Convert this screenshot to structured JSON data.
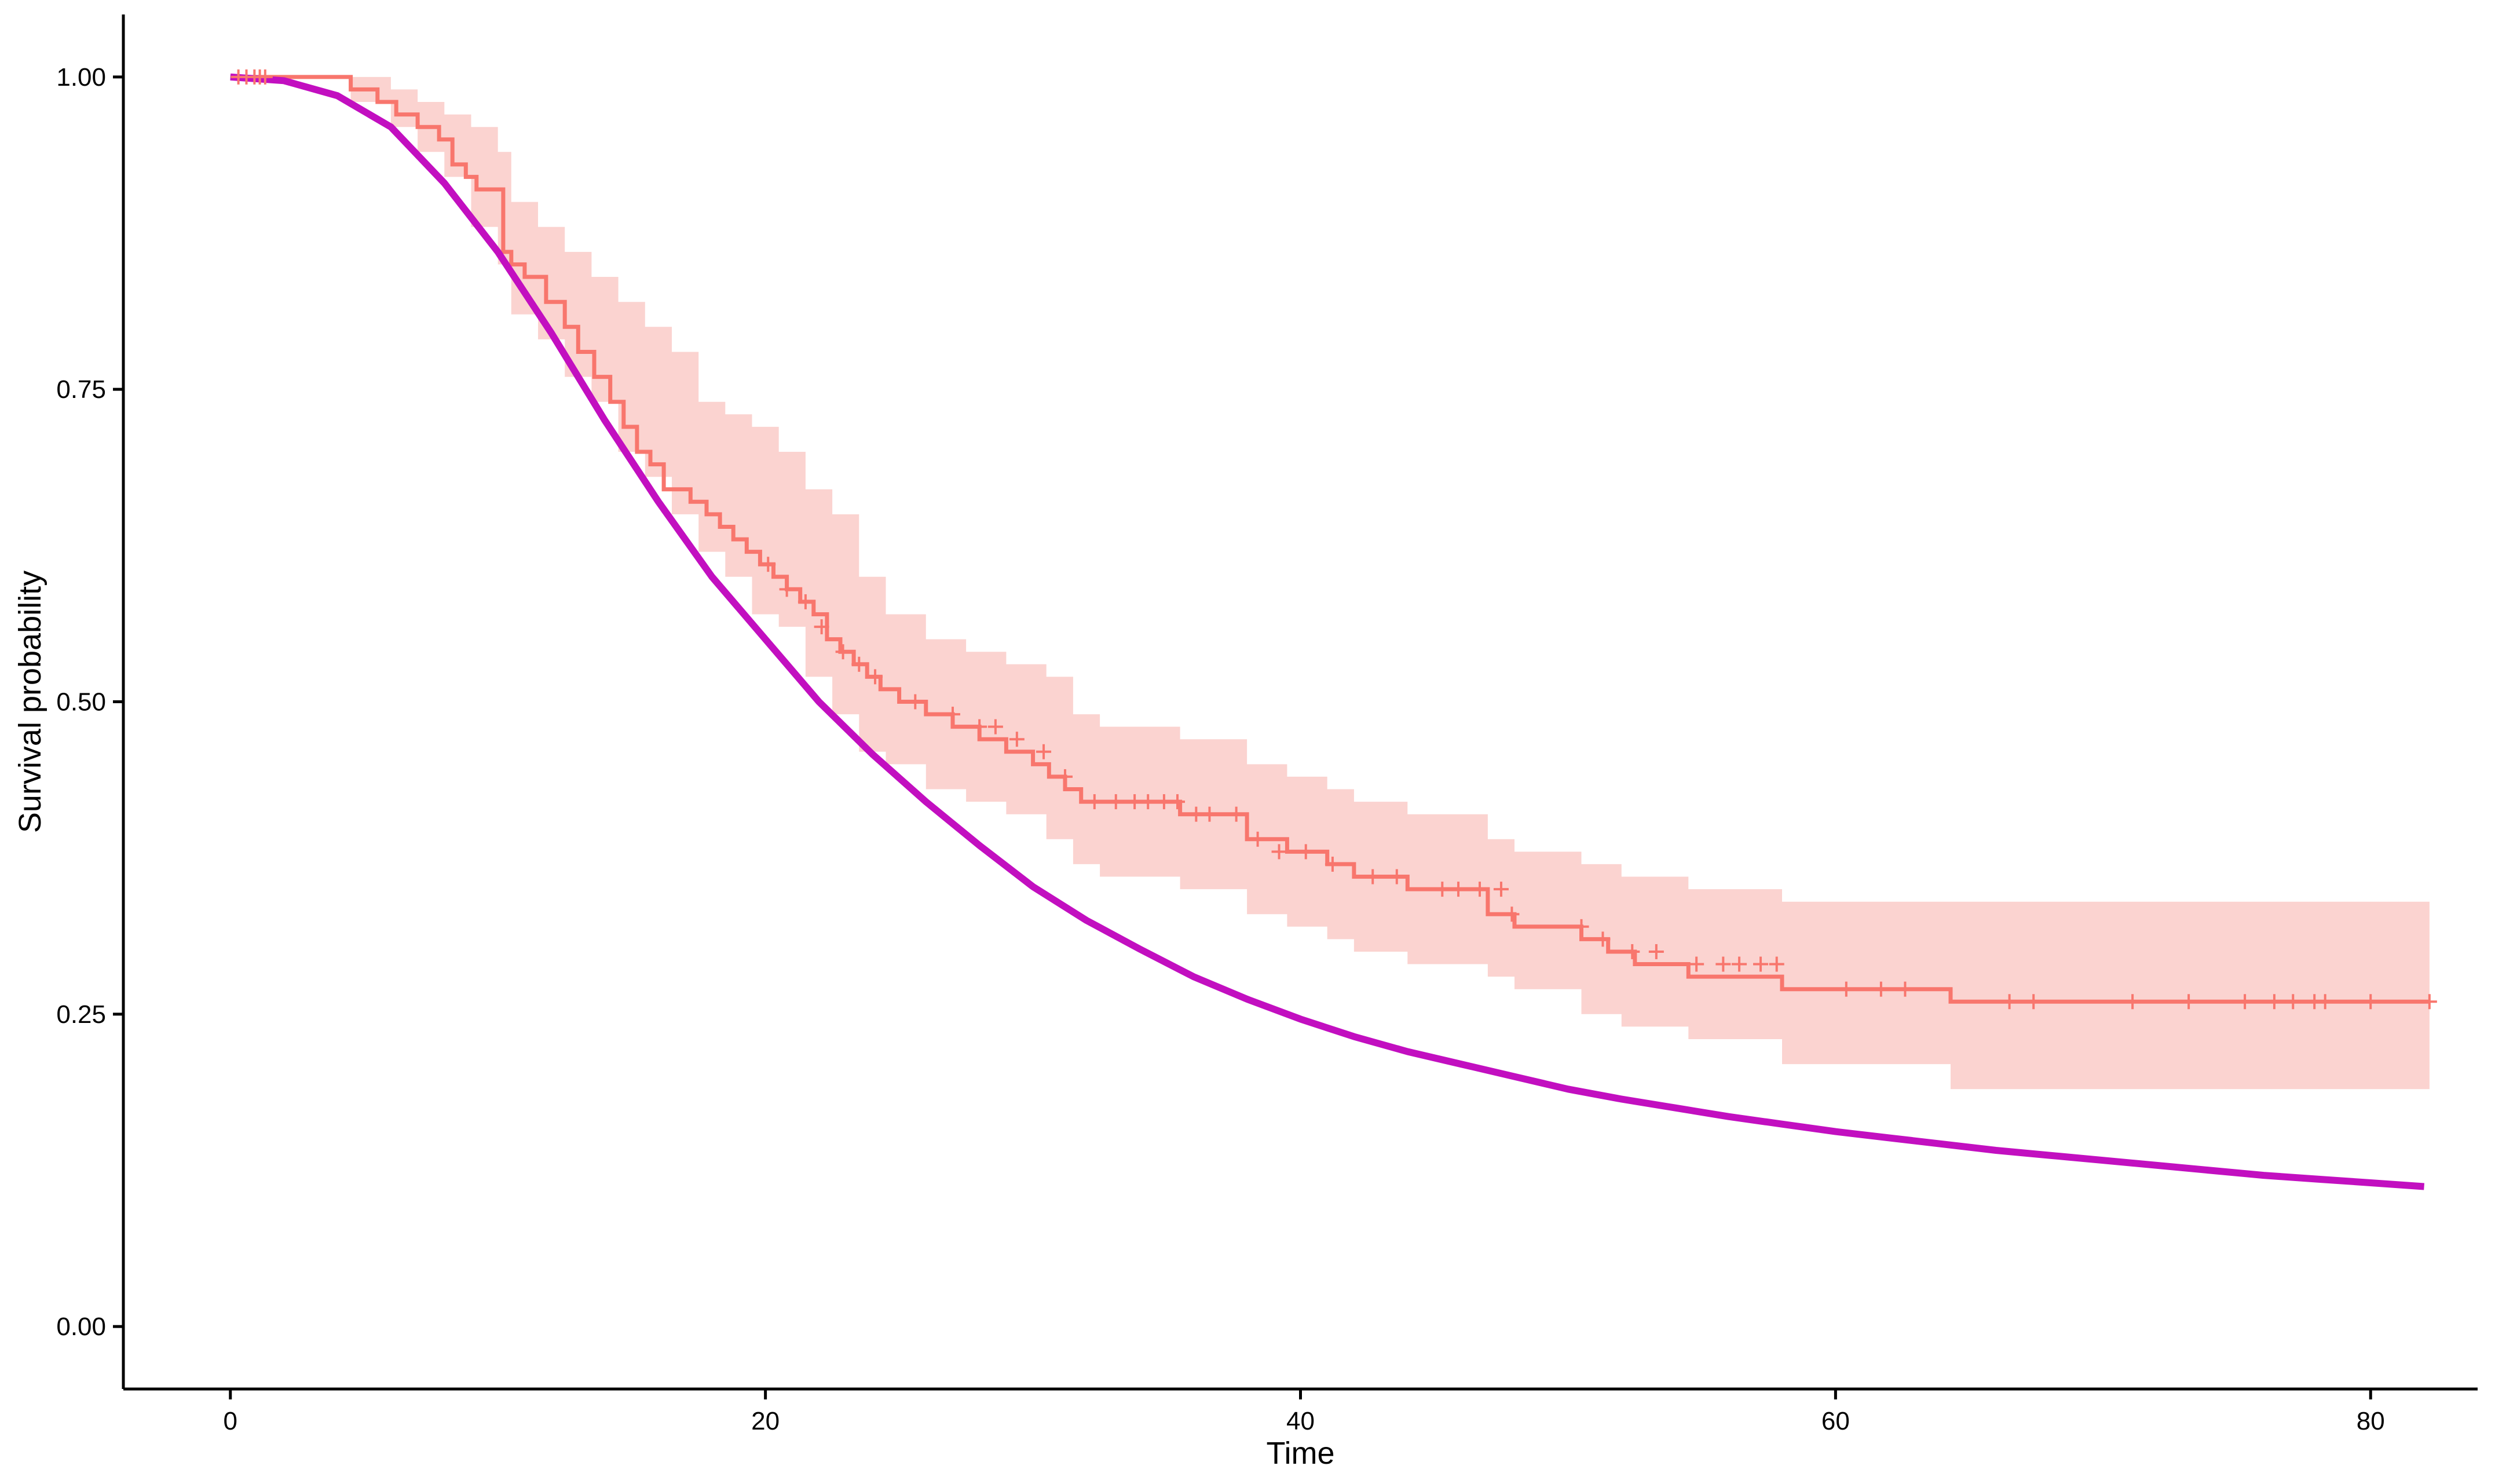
{
  "chart_data": {
    "type": "line",
    "title": "",
    "xlabel": "Time",
    "ylabel": "Survival probability",
    "xlim": [
      -4,
      84
    ],
    "ylim": [
      -0.05,
      1.05
    ],
    "x_ticks": [
      0,
      20,
      40,
      60,
      80
    ],
    "x_tick_labels": [
      "0",
      "20",
      "40",
      "60",
      "80"
    ],
    "y_ticks": [
      0,
      0.25,
      0.5,
      0.75,
      1.0
    ],
    "y_tick_labels": [
      "0.00",
      "0.25",
      "0.50",
      "0.75",
      "1.00"
    ],
    "grid": false,
    "legend": "none",
    "colors": {
      "km": "#F8766D",
      "ci_band": "#FBD3D0",
      "parametric": "#C20FC0"
    },
    "series": [
      {
        "kind": "step",
        "color": "#F8766D",
        "x": [
          0,
          4.5,
          5.5,
          6.2,
          7.0,
          7.8,
          8.3,
          8.8,
          9.2,
          9.6,
          10.2,
          10.5,
          11.0,
          11.8,
          12.5,
          13.0,
          13.6,
          14.2,
          14.7,
          15.2,
          15.7,
          16.2,
          16.6,
          17.2,
          17.8,
          18.3,
          18.8,
          19.3,
          19.8,
          20.3,
          20.8,
          21.3,
          21.8,
          22.3,
          22.8,
          23.3,
          23.8,
          24.3,
          25.0,
          26.0,
          27.0,
          28.0,
          29.0,
          30.0,
          30.6,
          31.2,
          31.8,
          32.4,
          35.5,
          38.0,
          39.5,
          41.0,
          42.0,
          44.0,
          47.0,
          48.0,
          50.5,
          51.5,
          52.5,
          54.5,
          58.0,
          64.3,
          82.2
        ],
        "y": [
          1.0,
          0.99,
          0.98,
          0.97,
          0.96,
          0.95,
          0.93,
          0.92,
          0.91,
          0.91,
          0.86,
          0.85,
          0.84,
          0.82,
          0.8,
          0.78,
          0.76,
          0.74,
          0.72,
          0.7,
          0.69,
          0.67,
          0.67,
          0.66,
          0.65,
          0.64,
          0.63,
          0.62,
          0.61,
          0.6,
          0.59,
          0.58,
          0.57,
          0.55,
          0.54,
          0.53,
          0.52,
          0.51,
          0.5,
          0.49,
          0.48,
          0.47,
          0.46,
          0.45,
          0.44,
          0.43,
          0.42,
          0.42,
          0.41,
          0.39,
          0.38,
          0.37,
          0.36,
          0.35,
          0.33,
          0.32,
          0.31,
          0.3,
          0.29,
          0.28,
          0.27,
          0.26,
          0.26
        ]
      },
      {
        "kind": "ci_band",
        "color": "#FBD3D0",
        "x": [
          0,
          4.5,
          6.0,
          7.0,
          8.0,
          9.0,
          10.0,
          10.5,
          11.5,
          12.5,
          13.5,
          14.5,
          15.5,
          16.5,
          17.5,
          18.5,
          19.5,
          20.5,
          21.5,
          22.5,
          23.5,
          24.5,
          26.0,
          27.5,
          29.0,
          30.5,
          31.5,
          32.5,
          35.5,
          38.0,
          39.5,
          41.0,
          42.0,
          44.0,
          47.0,
          48.0,
          50.5,
          52.0,
          54.5,
          58.0,
          64.3,
          82.2
        ],
        "upper": [
          1.0,
          1.0,
          0.99,
          0.98,
          0.97,
          0.96,
          0.94,
          0.9,
          0.88,
          0.86,
          0.84,
          0.82,
          0.8,
          0.78,
          0.74,
          0.73,
          0.72,
          0.7,
          0.67,
          0.65,
          0.6,
          0.57,
          0.55,
          0.54,
          0.53,
          0.52,
          0.49,
          0.48,
          0.47,
          0.45,
          0.44,
          0.43,
          0.42,
          0.41,
          0.39,
          0.38,
          0.37,
          0.36,
          0.35,
          0.34,
          0.34,
          0.34
        ],
        "lower": [
          1.0,
          0.98,
          0.96,
          0.94,
          0.92,
          0.88,
          0.85,
          0.81,
          0.79,
          0.76,
          0.74,
          0.7,
          0.68,
          0.65,
          0.62,
          0.6,
          0.57,
          0.56,
          0.52,
          0.49,
          0.46,
          0.45,
          0.43,
          0.42,
          0.41,
          0.39,
          0.37,
          0.36,
          0.35,
          0.33,
          0.32,
          0.31,
          0.3,
          0.29,
          0.28,
          0.27,
          0.25,
          0.24,
          0.23,
          0.21,
          0.19,
          0.19
        ]
      },
      {
        "kind": "smooth",
        "color": "#C20FC0",
        "x": [
          0,
          2,
          4,
          6,
          8,
          10,
          12,
          14,
          16,
          18,
          20,
          22,
          24,
          26,
          28,
          30,
          32,
          34,
          36,
          38,
          40,
          42,
          44,
          46,
          48,
          50,
          52,
          54,
          56,
          58,
          60,
          62,
          64,
          66,
          68,
          70,
          72,
          74,
          76,
          78,
          80,
          82
        ],
        "y": [
          1.0,
          0.997,
          0.985,
          0.96,
          0.915,
          0.86,
          0.795,
          0.725,
          0.66,
          0.6,
          0.55,
          0.5,
          0.458,
          0.42,
          0.385,
          0.352,
          0.325,
          0.302,
          0.28,
          0.262,
          0.246,
          0.232,
          0.22,
          0.21,
          0.2,
          0.19,
          0.182,
          0.175,
          0.168,
          0.162,
          0.156,
          0.151,
          0.146,
          0.141,
          0.137,
          0.133,
          0.129,
          0.125,
          0.121,
          0.118,
          0.115,
          0.112
        ]
      }
    ],
    "censor_marks": {
      "color": "#F8766D",
      "x": [
        0.3,
        0.6,
        0.9,
        1.1,
        1.3,
        20.1,
        20.8,
        21.5,
        22.1,
        22.9,
        23.5,
        24.1,
        25.6,
        27.0,
        28.0,
        28.6,
        29.4,
        30.4,
        31.2,
        32.3,
        33.1,
        33.8,
        34.3,
        34.9,
        35.4,
        36.1,
        36.6,
        37.6,
        38.4,
        39.2,
        40.2,
        41.2,
        42.7,
        43.6,
        45.3,
        45.9,
        46.7,
        47.5,
        47.9,
        50.5,
        51.3,
        52.4,
        53.3,
        54.8,
        55.8,
        56.4,
        57.2,
        57.8,
        60.4,
        61.7,
        62.6,
        66.5,
        67.4,
        71.1,
        73.2,
        75.3,
        76.4,
        77.1,
        77.9,
        78.3,
        80.0,
        82.2
      ],
      "y": [
        1.0,
        1.0,
        1.0,
        1.0,
        1.0,
        0.61,
        0.59,
        0.58,
        0.56,
        0.54,
        0.53,
        0.52,
        0.5,
        0.49,
        0.48,
        0.48,
        0.47,
        0.46,
        0.44,
        0.42,
        0.42,
        0.42,
        0.42,
        0.42,
        0.42,
        0.41,
        0.41,
        0.41,
        0.39,
        0.38,
        0.38,
        0.37,
        0.36,
        0.36,
        0.35,
        0.35,
        0.35,
        0.35,
        0.33,
        0.32,
        0.31,
        0.3,
        0.3,
        0.29,
        0.29,
        0.29,
        0.29,
        0.29,
        0.27,
        0.27,
        0.27,
        0.26,
        0.26,
        0.26,
        0.26,
        0.26,
        0.26,
        0.26,
        0.26,
        0.26,
        0.26,
        0.26
      ]
    }
  }
}
